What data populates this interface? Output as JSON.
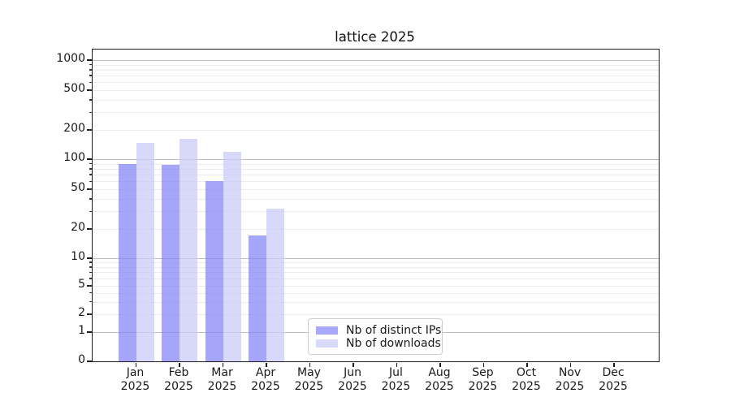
{
  "title": "lattice 2025",
  "chart_data": {
    "type": "bar",
    "title": "lattice 2025",
    "yscale": "symlog",
    "ylim": [
      0,
      1300
    ],
    "grid": true,
    "legend_position": "lower center, inside axes",
    "categories": [
      "Jan 2025",
      "Feb 2025",
      "Mar 2025",
      "Apr 2025",
      "May 2025",
      "Jun 2025",
      "Jul 2025",
      "Aug 2025",
      "Sep 2025",
      "Oct 2025",
      "Nov 2025",
      "Dec 2025"
    ],
    "yticks": [
      0,
      1,
      2,
      5,
      10,
      20,
      50,
      100,
      200,
      500,
      1000
    ],
    "series": [
      {
        "name": "Nb of distinct IPs",
        "color": "#a8a8fa",
        "values": [
          89,
          88,
          60,
          17,
          0,
          0,
          0,
          0,
          0,
          0,
          0,
          0
        ]
      },
      {
        "name": "Nb of downloads",
        "color": "#d9d9fa",
        "values": [
          146,
          162,
          119,
          32,
          0,
          0,
          0,
          0,
          0,
          0,
          0,
          0
        ]
      }
    ]
  }
}
